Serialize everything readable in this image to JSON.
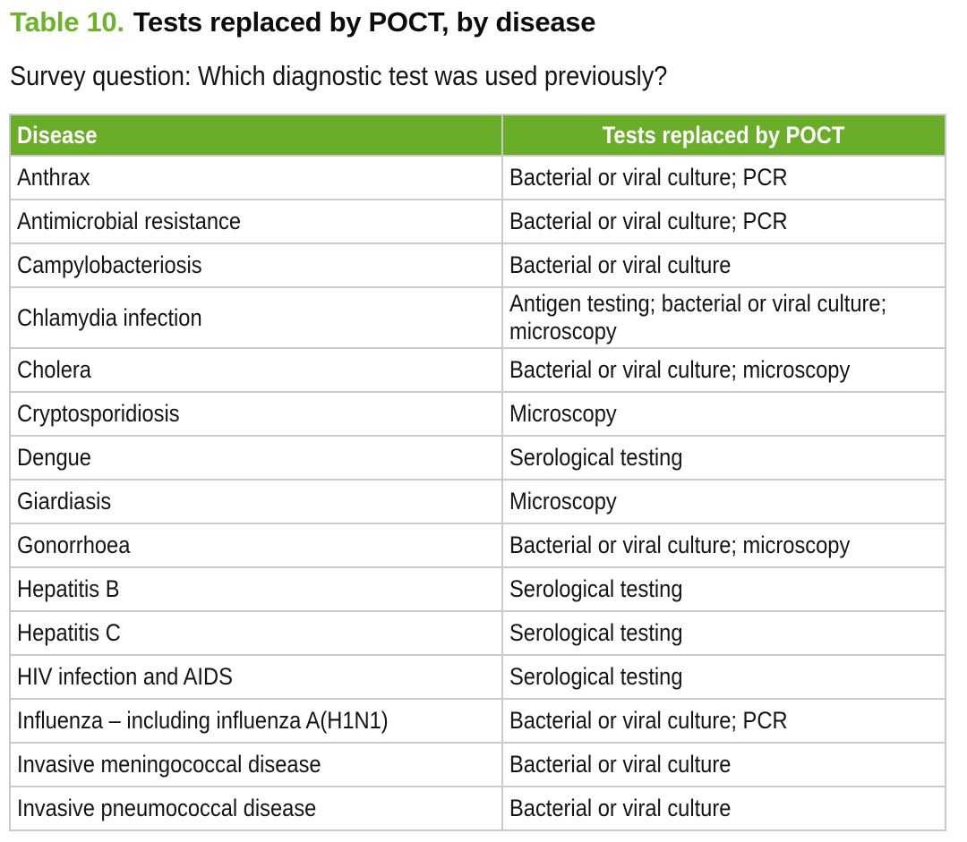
{
  "header": {
    "table_label": "Table 10.",
    "table_title": "Tests replaced by POCT, by disease",
    "survey_question": "Survey question: Which diagnostic test was used previously?"
  },
  "colors": {
    "title_green": "#6db32c",
    "header_green": "#6aad29",
    "header_text": "#ffffff",
    "grid_line": "#cacaca",
    "outer_border": "#aeaeae"
  },
  "table": {
    "columns": [
      "Disease",
      "Tests replaced by POCT"
    ],
    "rows": [
      [
        "Anthrax",
        "Bacterial or viral culture; PCR"
      ],
      [
        "Antimicrobial resistance",
        "Bacterial or viral culture; PCR"
      ],
      [
        "Campylobacteriosis",
        "Bacterial or viral culture"
      ],
      [
        "Chlamydia infection",
        "Antigen testing; bacterial or viral culture; microscopy"
      ],
      [
        "Cholera",
        "Bacterial or viral culture; microscopy"
      ],
      [
        "Cryptosporidiosis",
        "Microscopy"
      ],
      [
        "Dengue",
        "Serological testing"
      ],
      [
        "Giardiasis",
        "Microscopy"
      ],
      [
        "Gonorrhoea",
        "Bacterial or viral culture; microscopy"
      ],
      [
        "Hepatitis B",
        "Serological testing"
      ],
      [
        "Hepatitis C",
        "Serological testing"
      ],
      [
        "HIV infection and AIDS",
        "Serological testing"
      ],
      [
        "Influenza – including influenza A(H1N1)",
        "Bacterial or viral culture; PCR"
      ],
      [
        "Invasive meningococcal disease",
        "Bacterial or viral culture"
      ],
      [
        "Invasive pneumococcal disease",
        "Bacterial or viral culture"
      ]
    ]
  }
}
